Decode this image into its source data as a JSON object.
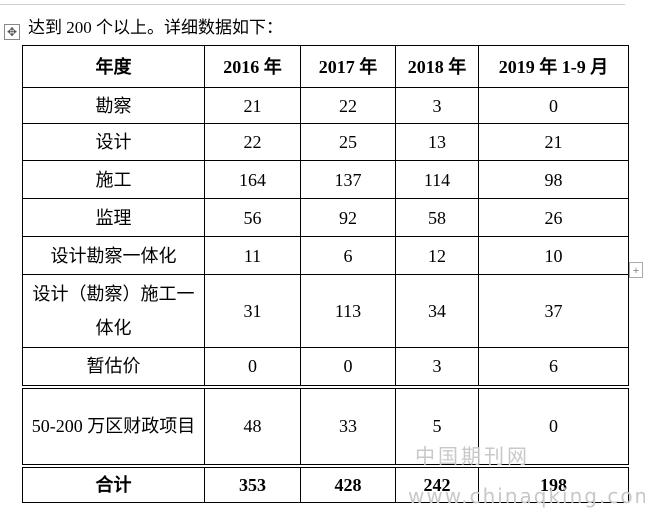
{
  "intro": "达到 200 个以上。详细数据如下：",
  "table": {
    "header": [
      "年度",
      "2016 年",
      "2017 年",
      "2018 年",
      "2019 年 1-9 月"
    ],
    "rows": [
      [
        "勘察",
        21,
        22,
        3,
        0
      ],
      [
        "设计",
        22,
        25,
        13,
        21
      ],
      [
        "施工",
        164,
        137,
        114,
        98
      ],
      [
        "监理",
        56,
        92,
        58,
        26
      ],
      [
        "设计勘察一体化",
        11,
        6,
        12,
        10
      ],
      [
        "设计（勘察）施工一体化",
        31,
        113,
        34,
        37
      ],
      [
        "暂估价",
        0,
        0,
        3,
        6
      ],
      [
        "50-200 万区财政项目",
        48,
        33,
        5,
        0
      ],
      [
        "合计",
        353,
        428,
        242,
        198
      ]
    ]
  },
  "watermark": {
    "cn": "中国期刊网",
    "url": "www.chinaqking.com"
  }
}
